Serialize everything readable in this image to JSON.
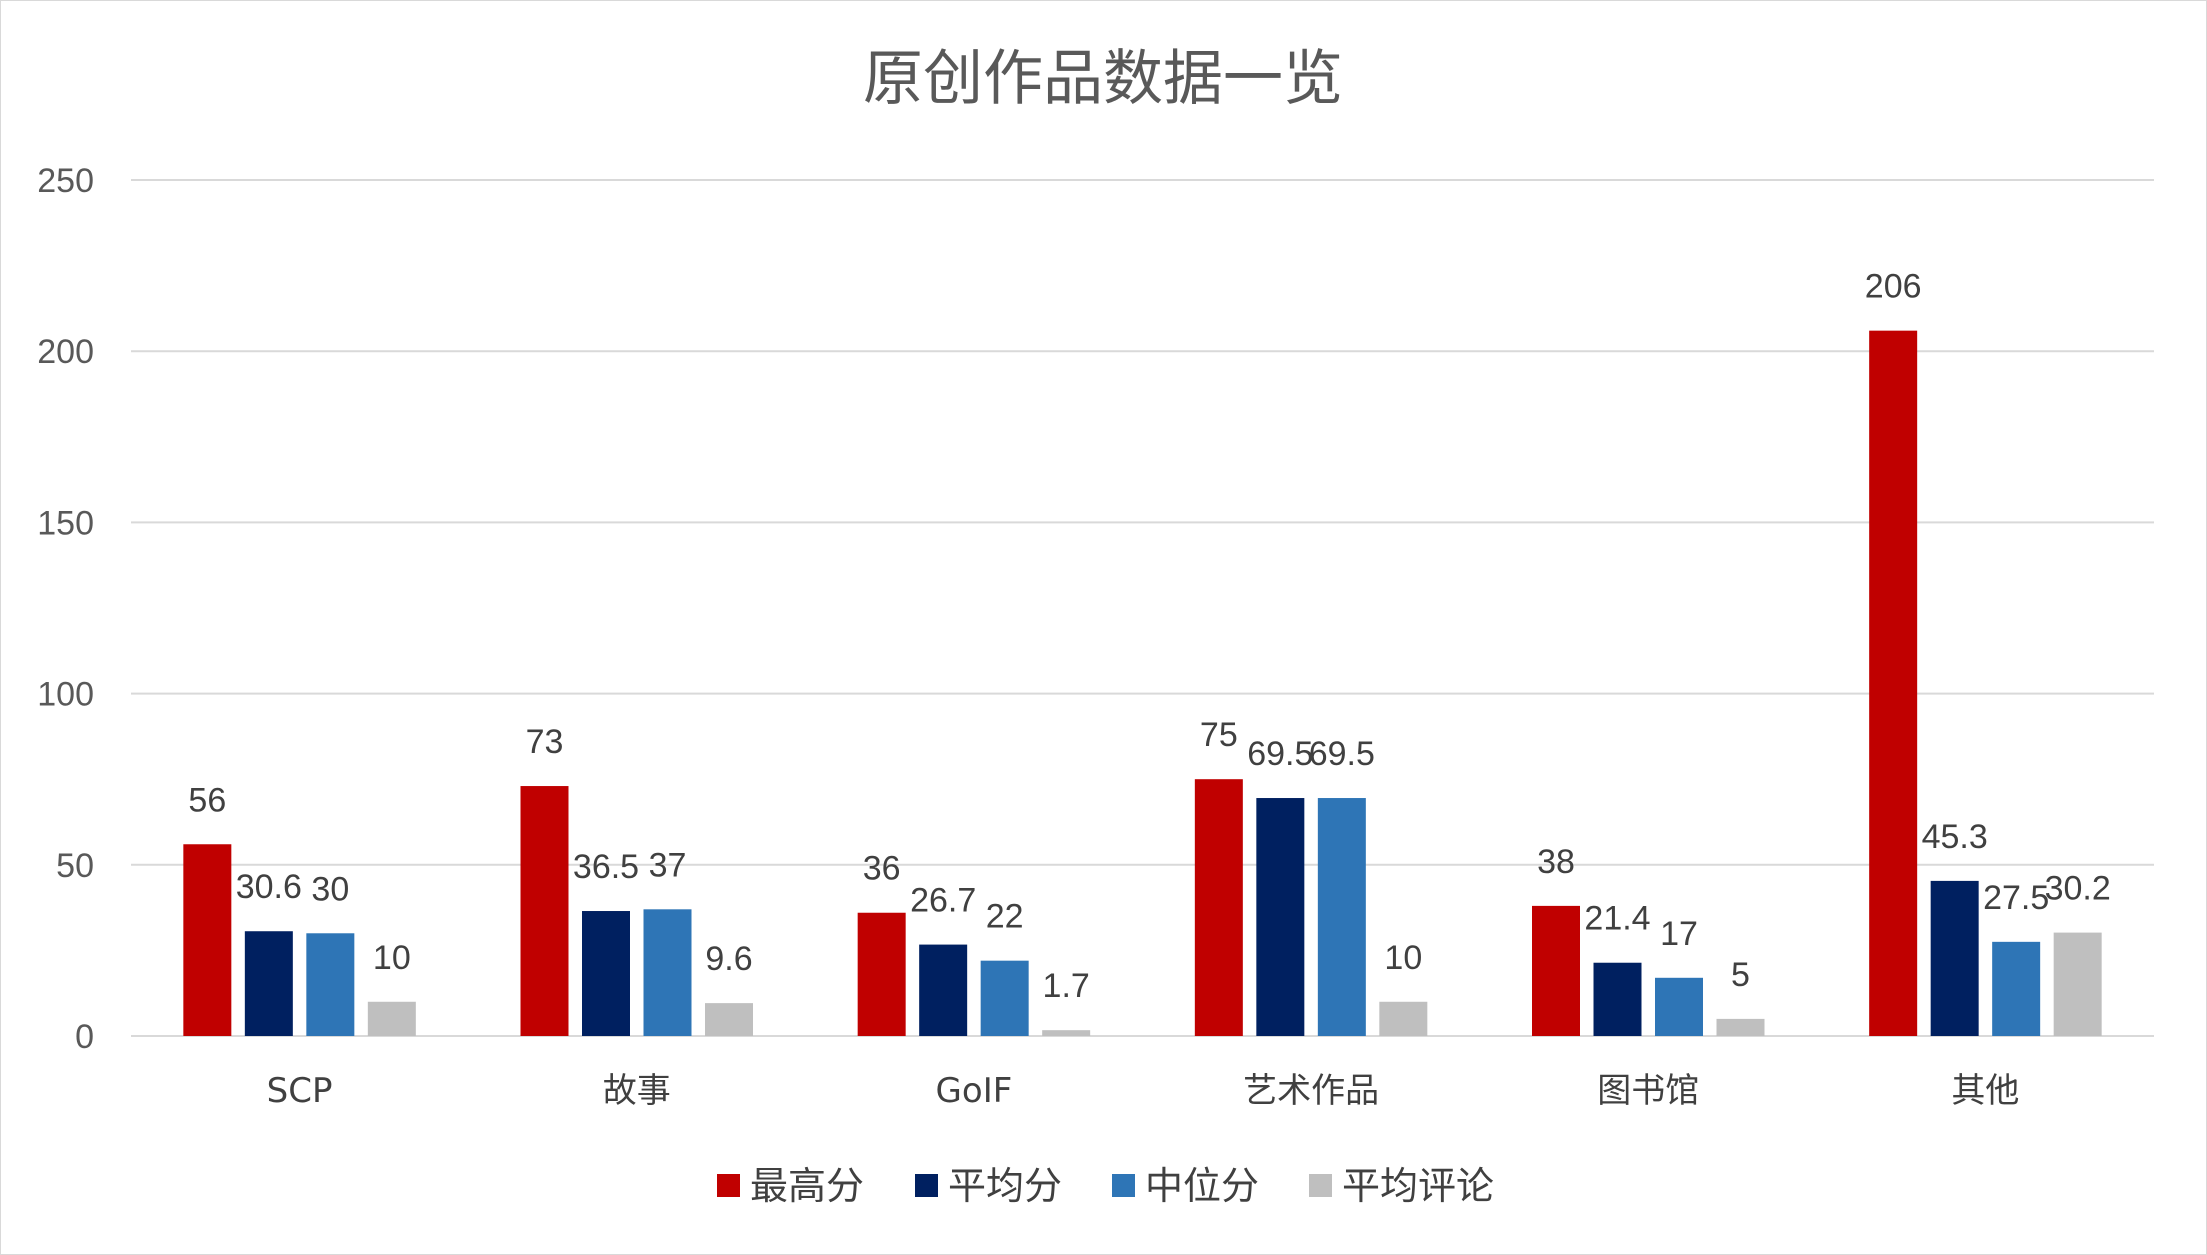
{
  "chart_data": {
    "type": "bar",
    "title": "原创作品数据一览",
    "xlabel": "",
    "ylabel": "",
    "ylim": [
      0,
      250
    ],
    "yticks": [
      0,
      50,
      100,
      150,
      200,
      250
    ],
    "grid": true,
    "legend_position": "bottom",
    "categories": [
      "SCP",
      "故事",
      "GoIF",
      "艺术作品",
      "图书馆",
      "其他"
    ],
    "series": [
      {
        "name": "最高分",
        "color": "#c00000",
        "values": [
          56,
          73,
          36,
          75,
          38,
          206
        ],
        "labels": [
          "56",
          "73",
          "36",
          "75",
          "38",
          "206"
        ]
      },
      {
        "name": "平均分",
        "color": "#002060",
        "values": [
          30.6,
          36.5,
          26.7,
          69.5,
          21.4,
          45.3
        ],
        "labels": [
          "30.6",
          "36.5",
          "26.7",
          "69.5",
          "21.4",
          "45.3"
        ]
      },
      {
        "name": "中位分",
        "color": "#2e75b6",
        "values": [
          30,
          37,
          22,
          69.5,
          17,
          27.5
        ],
        "labels": [
          "30",
          "37",
          "22",
          "69.5",
          "17",
          "27.5"
        ]
      },
      {
        "name": "平均评论",
        "color": "#bfbfbf",
        "values": [
          10,
          9.6,
          1.7,
          10,
          5,
          30.2
        ],
        "labels": [
          "10",
          "9.6",
          "1.7",
          "10",
          "5",
          "30.2"
        ]
      }
    ]
  }
}
